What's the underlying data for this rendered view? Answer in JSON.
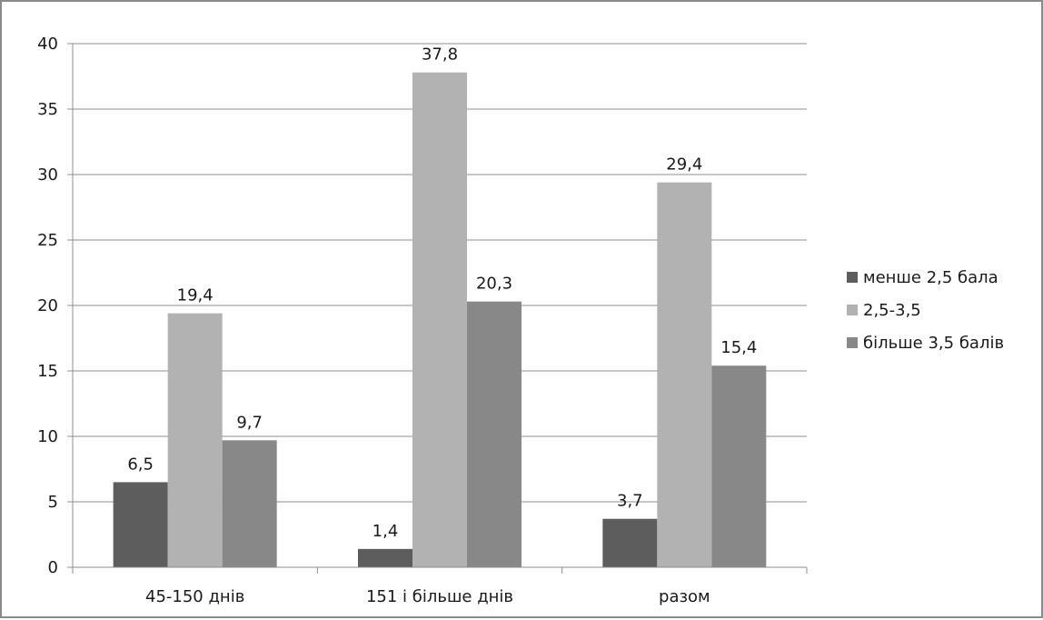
{
  "chart_data": {
    "type": "bar",
    "title": "",
    "xlabel": "",
    "ylabel": "",
    "categories": [
      "45-150 днів",
      "151 і більше днів",
      "разом"
    ],
    "series": [
      {
        "name": "менше 2,5 бала",
        "values": [
          6.5,
          1.4,
          3.7
        ],
        "labels": [
          "6,5",
          "1,4",
          "3,7"
        ],
        "color": "#5d5d5d"
      },
      {
        "name": "2,5-3,5",
        "values": [
          19.4,
          37.8,
          29.4
        ],
        "labels": [
          "19,4",
          "37,8",
          "29,4"
        ],
        "color": "#b2b2b2"
      },
      {
        "name": "більше 3,5 балів",
        "values": [
          9.7,
          20.3,
          15.4
        ],
        "labels": [
          "9,7",
          "20,3",
          "15,4"
        ],
        "color": "#888888"
      }
    ],
    "ylim": [
      0,
      40
    ],
    "yticks": [
      0,
      5,
      10,
      15,
      20,
      25,
      30,
      35,
      40
    ],
    "grid": true,
    "legend": "right"
  }
}
